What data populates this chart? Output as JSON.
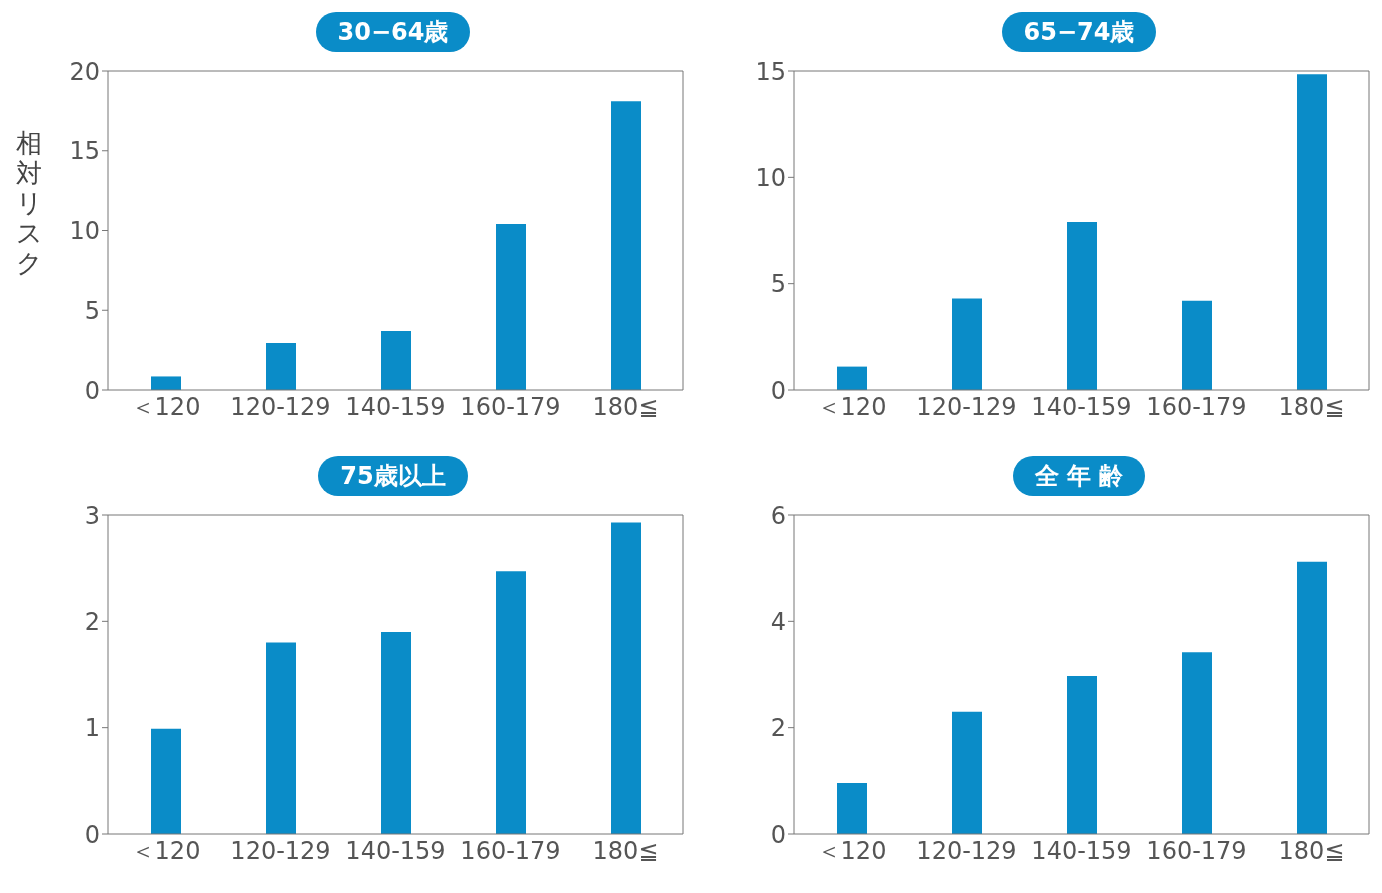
{
  "chart_data": [
    {
      "type": "bar",
      "title": "30−64歳",
      "ylabel": "相対リスク",
      "categories": [
        "＜120",
        "120‑129",
        "140‑159",
        "160‑179",
        "180≦"
      ],
      "values": [
        0.85,
        2.95,
        3.7,
        10.4,
        18.1
      ],
      "color": "#0a8cc8",
      "ylim": [
        0,
        20
      ],
      "yticks": [
        0,
        5,
        10,
        15,
        20
      ],
      "grid": false
    },
    {
      "type": "bar",
      "title": "65−74歳",
      "categories": [
        "＜120",
        "120‑129",
        "140‑159",
        "160‑179",
        "180≦"
      ],
      "values": [
        1.1,
        4.3,
        7.9,
        4.2,
        14.85
      ],
      "color": "#0a8cc8",
      "ylim": [
        0,
        15
      ],
      "yticks": [
        0,
        5,
        10,
        15
      ],
      "grid": false
    },
    {
      "type": "bar",
      "title": "75歳以上",
      "categories": [
        "＜120",
        "120‑129",
        "140‑159",
        "160‑179",
        "180≦"
      ],
      "values": [
        0.99,
        1.8,
        1.9,
        2.47,
        2.93
      ],
      "color": "#0a8cc8",
      "ylim": [
        0,
        3
      ],
      "yticks": [
        0,
        1,
        2,
        3
      ],
      "grid": false
    },
    {
      "type": "bar",
      "title": "全 年 齢",
      "categories": [
        "＜120",
        "120‑129",
        "140‑159",
        "160‑179",
        "180≦"
      ],
      "values": [
        0.96,
        2.3,
        2.97,
        3.42,
        5.12
      ],
      "color": "#0a8cc8",
      "ylim": [
        0,
        6
      ],
      "yticks": [
        0,
        2,
        4,
        6
      ],
      "grid": false
    }
  ]
}
